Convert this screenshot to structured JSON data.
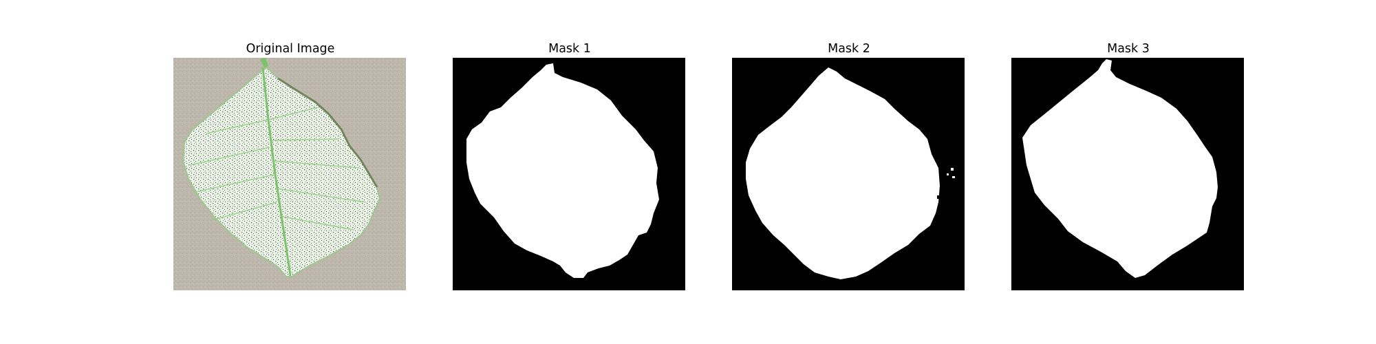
{
  "panels": [
    {
      "title": "Original Image"
    },
    {
      "title": "Mask 1"
    },
    {
      "title": "Mask 2"
    },
    {
      "title": "Mask 3"
    }
  ],
  "colors": {
    "background": "#ffffff",
    "mask_background": "#000000",
    "mask_foreground": "#ffffff",
    "leaf_base": "#eef3ea",
    "leaf_vein": "#7ac36a",
    "leaf_speckle": "#2e4f32",
    "table_surface": "#bdb8ab"
  }
}
